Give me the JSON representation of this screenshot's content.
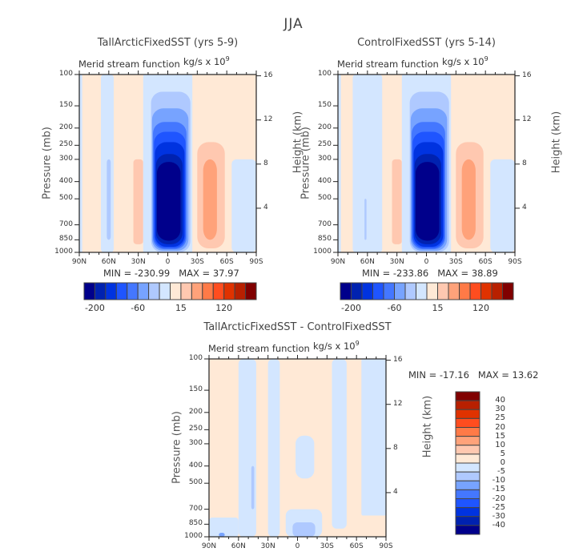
{
  "figure_title": "JJA",
  "chart_data": [
    {
      "type": "heatmap",
      "subtype": "filled-contour",
      "title": "TallArcticFixedSST (yrs 5-9)",
      "left_string": "Merid stream function",
      "right_string_base": "kg/s x 10",
      "right_string_exp": "9",
      "xlabel": "",
      "ylabel": "Pressure (mb)",
      "ylabel_right": "Height (km)",
      "x_ticks": [
        "90N",
        "60N",
        "30N",
        "0",
        "30S",
        "60S",
        "90S"
      ],
      "y_ticks": [
        "100",
        "150",
        "200",
        "250",
        "300",
        "400",
        "500",
        "700",
        "850",
        "1000"
      ],
      "y_ticks_right": [
        "16",
        "12",
        "8",
        "4"
      ],
      "xlim": [
        90,
        -90
      ],
      "ylim_mb": [
        1000,
        100
      ],
      "min_label": "MIN = -230.99",
      "max_label": "MAX = 37.97",
      "min": -230.99,
      "max": 37.97,
      "colorbar": {
        "orientation": "horizontal",
        "tick_labels": [
          "-200",
          "-60",
          "15",
          "120"
        ],
        "colors": [
          "#00008b",
          "#0022b0",
          "#0033e0",
          "#1f55ff",
          "#4477ff",
          "#77a3ff",
          "#afc9ff",
          "#d3e6ff",
          "#ffe9d6",
          "#ffc8b0",
          "#ffa27a",
          "#ff7a47",
          "#ff4d1f",
          "#e03200",
          "#b82000",
          "#800000"
        ]
      },
      "features": [
        {
          "name": "Hadley cell (negative)",
          "lat_range": [
            15,
            -25
          ],
          "p_range_mb": [
            120,
            1000
          ],
          "peak": -230.99,
          "peak_lat": 0,
          "peak_p_mb": 500
        },
        {
          "name": "Ferrel cell (positive, SH)",
          "lat_range": [
            -30,
            -60
          ],
          "p_range_mb": [
            250,
            950
          ],
          "peak": 37.97,
          "peak_lat": -40,
          "peak_p_mb": 500
        },
        {
          "name": "NH weak negative",
          "lat_range": [
            70,
            50
          ],
          "p_range_mb": [
            300,
            850
          ],
          "peak": -20
        },
        {
          "name": "NH weak positive",
          "lat_range": [
            35,
            25
          ],
          "p_range_mb": [
            300,
            900
          ],
          "peak": 15
        }
      ]
    },
    {
      "type": "heatmap",
      "subtype": "filled-contour",
      "title": "ControlFixedSST (yrs 5-14)",
      "left_string": "Merid stream function",
      "right_string_base": "kg/s x 10",
      "right_string_exp": "9",
      "xlabel": "",
      "ylabel": "Pressure (mb)",
      "ylabel_right": "Height (km)",
      "x_ticks": [
        "90N",
        "60N",
        "30N",
        "0",
        "30S",
        "60S",
        "90S"
      ],
      "y_ticks": [
        "100",
        "150",
        "200",
        "250",
        "300",
        "400",
        "500",
        "700",
        "850",
        "1000"
      ],
      "y_ticks_right": [
        "16",
        "12",
        "8",
        "4"
      ],
      "xlim": [
        90,
        -90
      ],
      "ylim_mb": [
        1000,
        100
      ],
      "min_label": "MIN = -233.86",
      "max_label": "MAX = 38.89",
      "min": -233.86,
      "max": 38.89,
      "colorbar": {
        "orientation": "horizontal",
        "tick_labels": [
          "-200",
          "-60",
          "15",
          "120"
        ],
        "colors": [
          "#00008b",
          "#0022b0",
          "#0033e0",
          "#1f55ff",
          "#4477ff",
          "#77a3ff",
          "#afc9ff",
          "#d3e6ff",
          "#ffe9d6",
          "#ffc8b0",
          "#ffa27a",
          "#ff7a47",
          "#ff4d1f",
          "#e03200",
          "#b82000",
          "#800000"
        ]
      },
      "features": [
        {
          "name": "Hadley cell (negative)",
          "lat_range": [
            15,
            -25
          ],
          "p_range_mb": [
            120,
            1000
          ],
          "peak": -233.86,
          "peak_lat": 0,
          "peak_p_mb": 500
        },
        {
          "name": "Ferrel cell (positive, SH)",
          "lat_range": [
            -30,
            -60
          ],
          "p_range_mb": [
            250,
            950
          ],
          "peak": 38.89,
          "peak_lat": -40,
          "peak_p_mb": 500
        },
        {
          "name": "NH weak negative",
          "lat_range": [
            75,
            45
          ],
          "p_range_mb": [
            100,
            1000
          ],
          "peak": -15
        },
        {
          "name": "NH weak positive",
          "lat_range": [
            35,
            25
          ],
          "p_range_mb": [
            250,
            900
          ],
          "peak": 15
        }
      ]
    },
    {
      "type": "heatmap",
      "subtype": "filled-contour",
      "title": "TallArcticFixedSST - ControlFixedSST",
      "left_string": "Merid stream function",
      "right_string_base": "kg/s x 10",
      "right_string_exp": "9",
      "xlabel": "",
      "ylabel": "Pressure (mb)",
      "ylabel_right": "Height (km)",
      "x_ticks": [
        "90N",
        "60N",
        "30N",
        "0",
        "30S",
        "60S",
        "90S"
      ],
      "y_ticks": [
        "100",
        "150",
        "200",
        "250",
        "300",
        "400",
        "500",
        "700",
        "850",
        "1000"
      ],
      "y_ticks_right": [
        "16",
        "12",
        "8",
        "4"
      ],
      "xlim": [
        90,
        -90
      ],
      "ylim_mb": [
        1000,
        100
      ],
      "min_label": "MIN = -17.16",
      "max_label": "MAX = 13.62",
      "min": -17.16,
      "max": 13.62,
      "colorbar": {
        "orientation": "vertical",
        "tick_labels": [
          "40",
          "30",
          "25",
          "20",
          "15",
          "10",
          "5",
          "0",
          "-5",
          "-10",
          "-15",
          "-20",
          "-25",
          "-30",
          "-40"
        ],
        "colors": [
          "#800000",
          "#b82000",
          "#e03200",
          "#ff4d1f",
          "#ff7a47",
          "#ffa27a",
          "#ffc8b0",
          "#ffe9d6",
          "#d3e6ff",
          "#afc9ff",
          "#77a3ff",
          "#4477ff",
          "#1f55ff",
          "#0033e0",
          "#0022b0",
          "#00008b"
        ]
      },
      "features": [
        {
          "name": "negative band 60N-45N",
          "lat_range": [
            60,
            42
          ],
          "p_range_mb": [
            100,
            1000
          ],
          "peak": -5
        },
        {
          "name": "negative band 30N-20N",
          "lat_range": [
            30,
            18
          ],
          "p_range_mb": [
            100,
            1000
          ],
          "peak": -5
        },
        {
          "name": "negative patch 0-15S",
          "lat_range": [
            0,
            -18
          ],
          "p_range_mb": [
            270,
            450
          ],
          "peak": -5
        },
        {
          "name": "negative surface patch near equator",
          "lat_range": [
            8,
            -20
          ],
          "p_range_mb": [
            700,
            1000
          ],
          "peak": -10
        },
        {
          "name": "negative band 35S-50S",
          "lat_range": [
            -35,
            -50
          ],
          "p_range_mb": [
            100,
            900
          ],
          "peak": -5
        },
        {
          "name": "negative band 65S-90S",
          "lat_range": [
            -65,
            -90
          ],
          "p_range_mb": [
            100,
            750
          ],
          "peak": -5
        },
        {
          "name": "min near 80N surface",
          "lat": 77,
          "p_mb": 1000,
          "peak": -17.16
        }
      ]
    }
  ]
}
